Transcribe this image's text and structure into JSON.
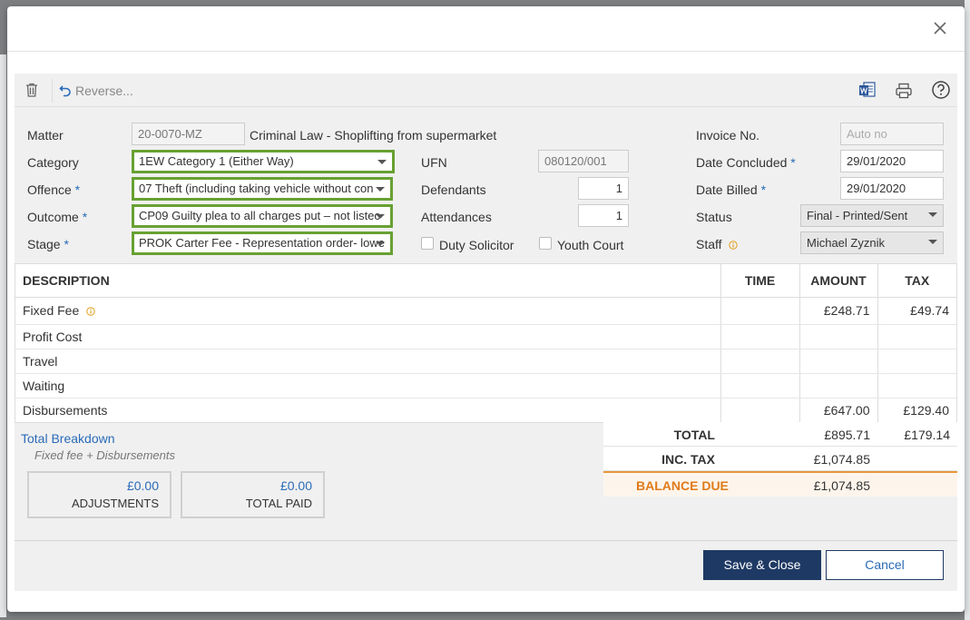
{
  "toolbar": {
    "reverse_label": "Reverse...",
    "icons": [
      "trash-icon",
      "undo-icon",
      "word-icon",
      "print-icon",
      "help-icon",
      "close-icon"
    ]
  },
  "form": {
    "matter_label": "Matter",
    "matter_value": "20-0070-MZ",
    "matter_description": "Criminal Law - Shoplifting from supermarket",
    "category_label": "Category",
    "category_value": "1EW Category 1 (Either Way)",
    "offence_label": "Offence",
    "offence_value": "07 Theft (including taking vehicle without con",
    "outcome_label": "Outcome",
    "outcome_value": "CP09 Guilty plea to all charges put – not listec",
    "stage_label": "Stage",
    "stage_value": "PROK Carter Fee - Representation order- lowe",
    "required_mark": "*",
    "ufn_label": "UFN",
    "ufn_value": "080120/001",
    "defendants_label": "Defendants",
    "defendants_value": "1",
    "attendances_label": "Attendances",
    "attendances_value": "1",
    "duty_solicitor_label": "Duty Solicitor",
    "youth_court_label": "Youth Court",
    "invoice_no_label": "Invoice No.",
    "invoice_no_placeholder": "Auto no",
    "date_concluded_label": "Date Concluded",
    "date_concluded_value": "29/01/2020",
    "date_billed_label": "Date Billed",
    "date_billed_value": "29/01/2020",
    "status_label": "Status",
    "status_value": "Final - Printed/Sent",
    "staff_label": "Staff",
    "staff_value": "Michael Zyznik"
  },
  "fees": {
    "headers": [
      "DESCRIPTION",
      "TIME",
      "AMOUNT",
      "TAX"
    ],
    "rows": [
      {
        "description": "Fixed Fee",
        "time": "",
        "amount": "£248.71",
        "tax": "£49.74"
      },
      {
        "description": "Profit Cost",
        "time": "",
        "amount": "",
        "tax": ""
      },
      {
        "description": "Travel",
        "time": "",
        "amount": "",
        "tax": ""
      },
      {
        "description": "Waiting",
        "time": "",
        "amount": "",
        "tax": ""
      },
      {
        "description": "Disbursements",
        "time": "",
        "amount": "£647.00",
        "tax": "£129.40"
      }
    ]
  },
  "breakdown": {
    "title": "Total Breakdown",
    "subtitle": "Fixed fee + Disbursements",
    "adjustments_value": "£0.00",
    "adjustments_label": "ADJUSTMENTS",
    "total_paid_value": "£0.00",
    "total_paid_label": "TOTAL PAID"
  },
  "totals": {
    "total_label": "TOTAL",
    "total_amount": "£895.71",
    "total_tax": "£179.14",
    "inc_tax_label": "INC. TAX",
    "inc_tax_amount": "£1,074.85",
    "balance_label": "BALANCE DUE",
    "balance_amount": "£1,074.85"
  },
  "buttons": {
    "save_close": "Save & Close",
    "cancel": "Cancel"
  },
  "colors": {
    "highlight_border": "#67a133",
    "primary": "#1e3a64",
    "link": "#2a6bb8",
    "balance": "#e07b1a"
  }
}
